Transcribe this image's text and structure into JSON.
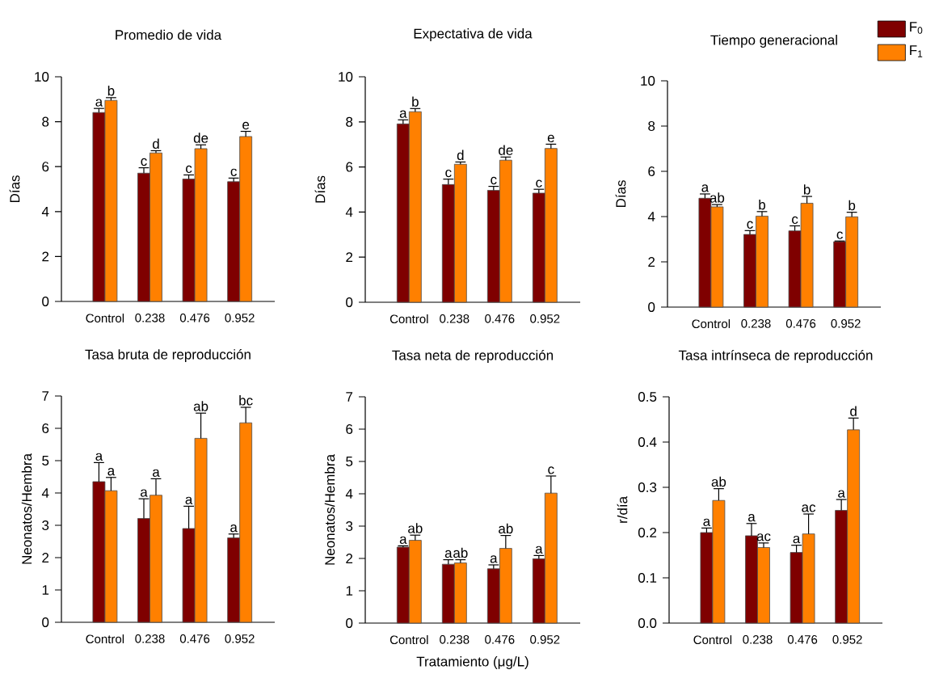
{
  "chart_data": [
    {
      "type": "bar",
      "title": "Promedio de vida",
      "ylabel": "Días",
      "categories": [
        "Control",
        "0.238",
        "0.476",
        "0.952"
      ],
      "ylim": [
        0,
        10
      ],
      "yticks": [
        0,
        2,
        4,
        6,
        8,
        10
      ],
      "series": [
        {
          "color": "#7f0000",
          "values": [
            8.41,
            5.71,
            5.45,
            5.33
          ],
          "errors": [
            0.18,
            0.24,
            0.18,
            0.16
          ],
          "value_labels": [
            "a",
            "c",
            "c",
            "c"
          ]
        },
        {
          "color": "#ff8000",
          "values": [
            8.95,
            6.61,
            6.8,
            7.34
          ],
          "errors": [
            0.12,
            0.1,
            0.17,
            0.23
          ],
          "value_labels": [
            "b",
            "d",
            "de",
            "e"
          ]
        }
      ]
    },
    {
      "type": "bar",
      "title": "Expectativa de vida",
      "ylabel": "Días",
      "categories": [
        "Control",
        "0.238",
        "0.476",
        "0.952"
      ],
      "ylim": [
        0,
        10
      ],
      "yticks": [
        0,
        2,
        4,
        6,
        8,
        10
      ],
      "series": [
        {
          "color": "#7f0000",
          "values": [
            7.91,
            5.22,
            4.96,
            4.84
          ],
          "errors": [
            0.18,
            0.24,
            0.18,
            0.17
          ],
          "value_labels": [
            "a",
            "c",
            "c",
            "c"
          ]
        },
        {
          "color": "#ff8000",
          "values": [
            8.45,
            6.12,
            6.3,
            6.82
          ],
          "errors": [
            0.14,
            0.1,
            0.14,
            0.19
          ],
          "value_labels": [
            "b",
            "d",
            "de",
            "e"
          ]
        }
      ]
    },
    {
      "type": "bar",
      "title": "Tiempo generacional",
      "ylabel": "Días",
      "categories": [
        "Control",
        "0.238",
        "0.476",
        "0.952"
      ],
      "ylim": [
        0,
        10
      ],
      "yticks": [
        0,
        2,
        4,
        6,
        8,
        10
      ],
      "legend": "top right",
      "series": [
        {
          "name": "F$_{0}$",
          "color": "#7f0000",
          "values": [
            4.81,
            3.21,
            3.37,
            2.89
          ],
          "errors": [
            0.19,
            0.17,
            0.22,
            0.03
          ],
          "value_labels": [
            "a",
            "c",
            "c",
            "c"
          ]
        },
        {
          "name": "F$_{1}$",
          "color": "#ff8000",
          "values": [
            4.43,
            4.02,
            4.59,
            3.99
          ],
          "errors": [
            0.1,
            0.2,
            0.3,
            0.2
          ],
          "value_labels": [
            "ab",
            "b",
            "b",
            "b"
          ]
        }
      ]
    },
    {
      "type": "bar",
      "title": "Tasa bruta de reproducción",
      "ylabel": "Neonatos/Hembra",
      "categories": [
        "Control",
        "0.238",
        "0.476",
        "0.952"
      ],
      "ylim": [
        0,
        7
      ],
      "yticks": [
        0,
        1,
        2,
        3,
        4,
        5,
        6,
        7
      ],
      "series": [
        {
          "color": "#7f0000",
          "values": [
            4.35,
            3.21,
            2.9,
            2.61
          ],
          "errors": [
            0.59,
            0.61,
            0.69,
            0.12
          ],
          "value_labels": [
            "a",
            "a",
            "a",
            "a"
          ]
        },
        {
          "color": "#ff8000",
          "values": [
            4.07,
            3.93,
            5.69,
            6.17
          ],
          "errors": [
            0.41,
            0.51,
            0.78,
            0.48
          ],
          "value_labels": [
            "a",
            "a",
            "ab",
            "bc"
          ]
        }
      ]
    },
    {
      "type": "bar",
      "title": "Tasa neta de reproducción",
      "ylabel": "Neonatos/Hembra",
      "xlabel": "Tratamiento (μg/L)",
      "categories": [
        "Control",
        "0.238",
        "0.476",
        "0.952"
      ],
      "ylim": [
        0,
        7
      ],
      "yticks": [
        0,
        1,
        2,
        3,
        4,
        5,
        6,
        7
      ],
      "series": [
        {
          "color": "#7f0000",
          "values": [
            2.35,
            1.82,
            1.68,
            1.99
          ],
          "errors": [
            0.04,
            0.14,
            0.12,
            0.1
          ],
          "value_labels": [
            "a",
            "a",
            "a",
            "a"
          ]
        },
        {
          "color": "#ff8000",
          "values": [
            2.56,
            1.86,
            2.31,
            4.02
          ],
          "errors": [
            0.16,
            0.1,
            0.4,
            0.53
          ],
          "value_labels": [
            "ab",
            "ab",
            "ab",
            "c"
          ]
        }
      ]
    },
    {
      "type": "bar",
      "title": "Tasa intrínseca de reproducción",
      "ylabel": "r/día",
      "categories": [
        "Control",
        "0.238",
        "0.476",
        "0.952"
      ],
      "ylim": [
        0,
        0.5
      ],
      "yticks": [
        {
          "value": 0,
          "label": "0.0"
        },
        0.1,
        0.2,
        0.3,
        0.4,
        0.5
      ],
      "series": [
        {
          "color": "#7f0000",
          "values": [
            0.2,
            0.193,
            0.156,
            0.249
          ],
          "errors": [
            0.01,
            0.027,
            0.016,
            0.024
          ],
          "value_labels": [
            "a",
            "a",
            "a",
            "a"
          ]
        },
        {
          "color": "#ff8000",
          "values": [
            0.271,
            0.167,
            0.197,
            0.427
          ],
          "errors": [
            0.026,
            0.01,
            0.044,
            0.026
          ],
          "value_labels": [
            "ab",
            "ac",
            "ac",
            "d"
          ]
        }
      ]
    }
  ]
}
